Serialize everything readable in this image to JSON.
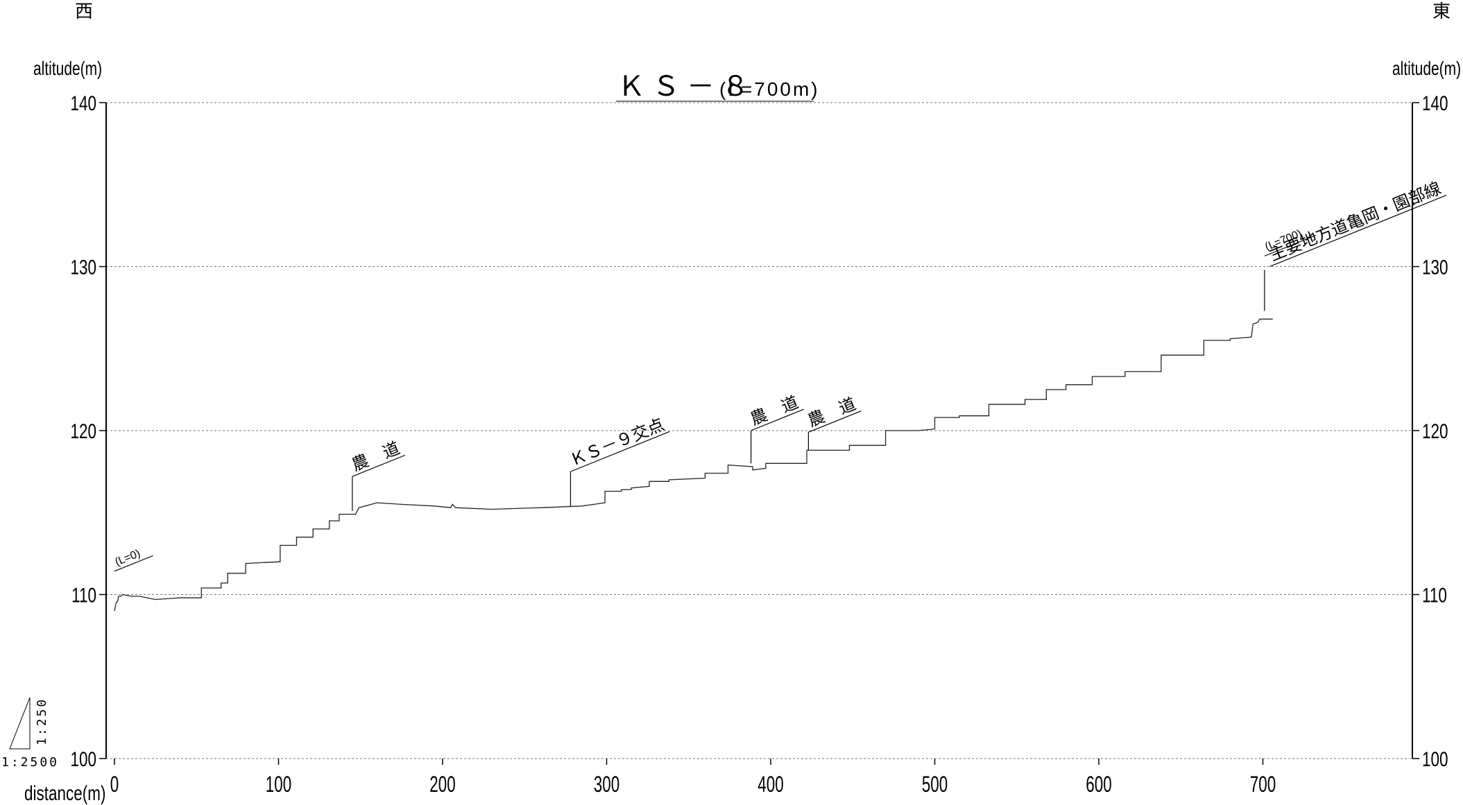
{
  "chart_data": {
    "type": "line",
    "title": "ＫＳ－８",
    "subtitle": "(L=700m)",
    "west_label": "西",
    "east_label": "東",
    "ylabel": "altitude(m)",
    "xlabel": "distance(m)",
    "ylim": [
      100,
      140
    ],
    "yticks": [
      100,
      110,
      120,
      130,
      140
    ],
    "xlim": [
      0,
      760
    ],
    "xticks": [
      0,
      100,
      200,
      300,
      400,
      500,
      600,
      700
    ],
    "grid": true,
    "scale_vertical": "1:250",
    "scale_horizontal": "1:2500",
    "series": [
      {
        "points": [
          [
            0,
            109.0
          ],
          [
            1,
            109.5
          ],
          [
            2,
            109.6
          ],
          [
            2.5,
            109.9
          ],
          [
            4,
            109.9
          ],
          [
            5,
            110.0
          ],
          [
            10,
            109.9
          ],
          [
            15,
            109.9
          ],
          [
            25,
            109.7
          ],
          [
            40,
            109.8
          ],
          [
            53,
            109.8
          ],
          [
            53,
            110.4
          ],
          [
            65,
            110.4
          ],
          [
            65,
            110.7
          ],
          [
            69,
            110.7
          ],
          [
            69,
            111.3
          ],
          [
            80,
            111.3
          ],
          [
            80,
            111.9
          ],
          [
            101,
            112.0
          ],
          [
            101,
            113.0
          ],
          [
            111,
            113.0
          ],
          [
            111,
            113.5
          ],
          [
            121,
            113.5
          ],
          [
            121,
            114.0
          ],
          [
            131,
            114.0
          ],
          [
            131,
            114.5
          ],
          [
            137,
            114.5
          ],
          [
            137,
            114.9
          ],
          [
            147,
            114.9
          ],
          [
            149,
            115.3
          ],
          [
            160,
            115.6
          ],
          [
            175,
            115.5
          ],
          [
            195,
            115.4
          ],
          [
            205,
            115.3
          ],
          [
            206,
            115.5
          ],
          [
            208,
            115.3
          ],
          [
            230,
            115.2
          ],
          [
            260,
            115.3
          ],
          [
            285,
            115.4
          ],
          [
            299,
            115.6
          ],
          [
            299,
            116.3
          ],
          [
            309,
            116.3
          ],
          [
            309,
            116.4
          ],
          [
            315,
            116.4
          ],
          [
            315,
            116.5
          ],
          [
            326,
            116.6
          ],
          [
            326,
            116.9
          ],
          [
            338,
            116.9
          ],
          [
            338,
            117.0
          ],
          [
            360,
            117.1
          ],
          [
            360,
            117.4
          ],
          [
            374,
            117.4
          ],
          [
            374,
            117.9
          ],
          [
            389,
            117.8
          ],
          [
            389,
            117.6
          ],
          [
            397,
            117.7
          ],
          [
            397,
            118.0
          ],
          [
            422,
            118.0
          ],
          [
            422,
            118.8
          ],
          [
            435,
            118.8
          ],
          [
            448,
            118.8
          ],
          [
            448,
            119.1
          ],
          [
            470,
            119.1
          ],
          [
            470,
            120.0
          ],
          [
            490,
            120.0
          ],
          [
            500,
            120.1
          ],
          [
            500,
            120.8
          ],
          [
            515,
            120.8
          ],
          [
            515,
            120.9
          ],
          [
            533,
            120.9
          ],
          [
            533,
            121.6
          ],
          [
            555,
            121.6
          ],
          [
            555,
            121.9
          ],
          [
            568,
            121.9
          ],
          [
            568,
            122.5
          ],
          [
            580,
            122.5
          ],
          [
            580,
            122.8
          ],
          [
            596,
            122.8
          ],
          [
            596,
            123.3
          ],
          [
            616,
            123.3
          ],
          [
            616,
            123.6
          ],
          [
            638,
            123.6
          ],
          [
            638,
            124.6
          ],
          [
            664,
            124.6
          ],
          [
            664,
            125.5
          ],
          [
            680,
            125.5
          ],
          [
            680,
            125.6
          ],
          [
            693,
            125.7
          ],
          [
            694,
            126.5
          ],
          [
            697,
            126.6
          ],
          [
            698,
            126.8
          ],
          [
            706,
            126.8
          ]
        ]
      }
    ],
    "annotations": [
      {
        "x": 0,
        "top": 111.0,
        "label": "(L=0)"
      },
      {
        "x": 145,
        "top": 117.2,
        "bottom": 115.1,
        "label": "農　道"
      },
      {
        "x": 278,
        "top": 117.5,
        "bottom": 115.4,
        "label": "ＫＳ－９交点"
      },
      {
        "x": 388,
        "top": 120.0,
        "bottom": 118.0,
        "label": "農　道"
      },
      {
        "x": 423,
        "top": 119.9,
        "bottom": 118.8,
        "label": "農　道"
      },
      {
        "x": 701,
        "top": 129.8,
        "bottom": 127.3,
        "label": "(L=700)"
      },
      {
        "x": 701,
        "top": 129.8,
        "bottom": 127.3,
        "label": "主要地方道亀岡・園部線"
      }
    ]
  }
}
